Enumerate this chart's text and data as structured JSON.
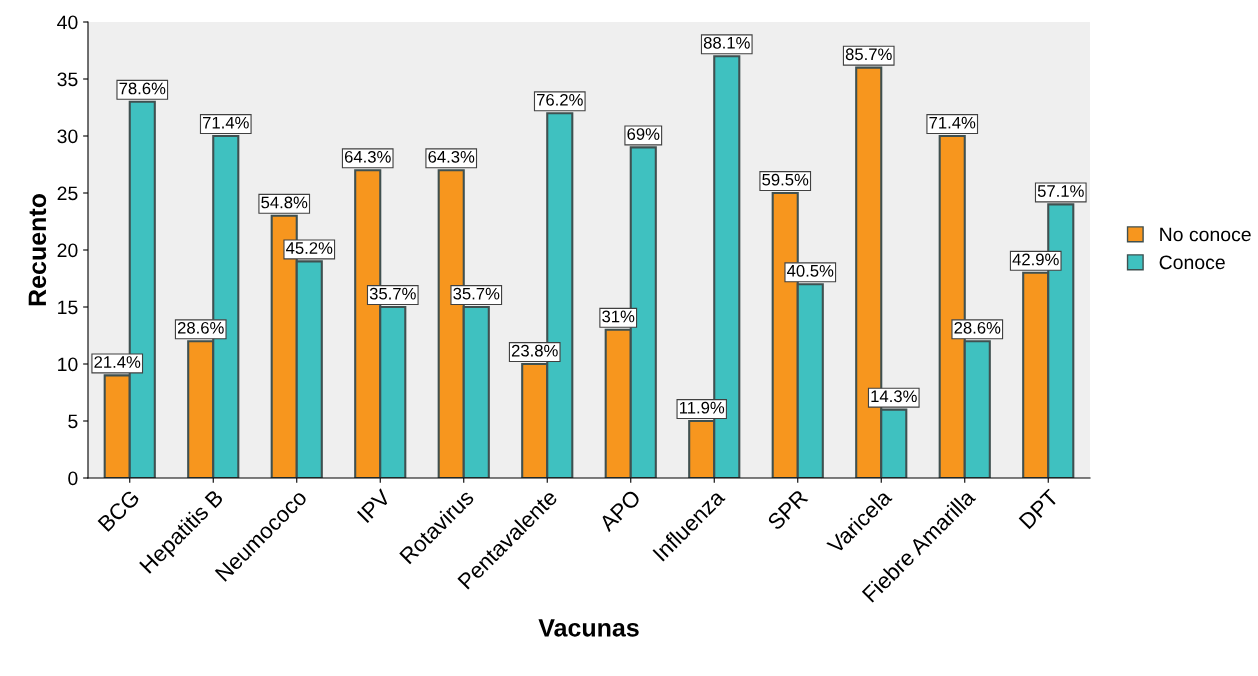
{
  "chart_data": {
    "type": "bar",
    "xlabel": "Vacunas",
    "ylabel": "Recuento",
    "categories": [
      "BCG",
      "Hepatitis B",
      "Neumococo",
      "IPV",
      "Rotavirus",
      "Pentavalente",
      "APO",
      "Influenza",
      "SPR",
      "Varicela",
      "Fiebre Amarilla",
      "DPT"
    ],
    "series": [
      {
        "name": "No conoce",
        "color": "#f7961e",
        "values": [
          9,
          12,
          23,
          27,
          27,
          10,
          13,
          5,
          25,
          36,
          30,
          18
        ]
      },
      {
        "name": "Conoce",
        "color": "#3fc1c0",
        "values": [
          33,
          30,
          19,
          15,
          15,
          32,
          29,
          37,
          17,
          6,
          12,
          24
        ]
      }
    ],
    "annotations": [
      {
        "text": "21.4%",
        "x": "BCG",
        "y": 9
      },
      {
        "text": "78.6%",
        "x": "BCG",
        "y": 33
      },
      {
        "text": "28.6%",
        "x": "Hepatitis B",
        "y": 12
      },
      {
        "text": "71.4%",
        "x": "Hepatitis B",
        "y": 30
      },
      {
        "text": "54.8%",
        "x": "Neumococo",
        "y": 23
      },
      {
        "text": "45.2%",
        "x": "Neumococo",
        "y": 19
      },
      {
        "text": "64.3%",
        "x": "IPV",
        "y": 27
      },
      {
        "text": "35.7%",
        "x": "IPV",
        "y": 15
      },
      {
        "text": "64.3%",
        "x": "Rotavirus",
        "y": 27
      },
      {
        "text": "35.7%",
        "x": "Rotavirus",
        "y": 15
      },
      {
        "text": "23.8%",
        "x": "Pentavalente",
        "y": 10
      },
      {
        "text": "76.2%",
        "x": "Pentavalente",
        "y": 32
      },
      {
        "text": "31%",
        "x": "APO",
        "y": 13
      },
      {
        "text": "69%",
        "x": "APO",
        "y": 29
      },
      {
        "text": "11.9%",
        "x": "Influenza",
        "y": 5
      },
      {
        "text": "88.1%",
        "x": "Influenza",
        "y": 37
      },
      {
        "text": "59.5%",
        "x": "SPR",
        "y": 25
      },
      {
        "text": "40.5%",
        "x": "SPR",
        "y": 17
      },
      {
        "text": "85.7%",
        "x": "Varicela",
        "y": 36
      },
      {
        "text": "14.3%",
        "x": "Varicela",
        "y": 6
      },
      {
        "text": "71.4%",
        "x": "Fiebre Amarilla",
        "y": 30
      },
      {
        "text": "28.6%",
        "x": "Fiebre Amarilla",
        "y": 12
      },
      {
        "text": "42.9%",
        "x": "DPT",
        "y": 18
      },
      {
        "text": "57.1%",
        "x": "DPT",
        "y": 24
      }
    ],
    "ylim": [
      0,
      40
    ],
    "yticks": [
      0,
      5,
      10,
      15,
      20,
      25,
      30,
      35,
      40
    ],
    "grid": false,
    "legend": "right"
  }
}
